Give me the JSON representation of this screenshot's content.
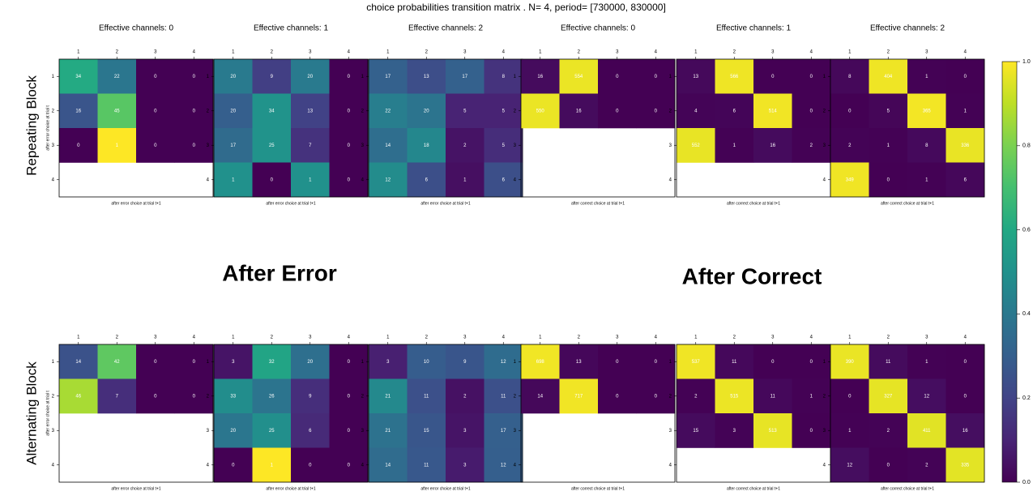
{
  "title": "choice probabilities transition matrix . N= 4, period= [730000, 830000]",
  "row_labels": [
    "Repeating Block",
    "Alternating Block"
  ],
  "group_labels": [
    "After Error",
    "After Correct"
  ],
  "colorbar": {
    "colormap": "viridis",
    "ylim": [
      0,
      1
    ],
    "yticks": [
      {
        "value": 0,
        "label": "0.0"
      },
      {
        "value": 0.2,
        "label": "0.2"
      },
      {
        "value": 0.4,
        "label": "0.4"
      },
      {
        "value": 0.6,
        "label": "0.6"
      },
      {
        "value": 0.8,
        "label": "0.8"
      },
      {
        "value": 1,
        "label": "1.0"
      }
    ]
  },
  "chart_data": [
    {
      "type": "heatmap",
      "title": "Effective channels: 0",
      "x_categories": [
        "1",
        "2",
        "3",
        "4"
      ],
      "y_categories": [
        "1",
        "2",
        "3",
        "4"
      ],
      "xlabel": "after error choice at trial t+1",
      "ylabel": "after error choice at trial t",
      "values": [
        [
          34,
          22,
          0,
          0
        ],
        [
          16,
          45,
          0,
          0
        ],
        [
          0,
          1,
          0,
          0
        ],
        null
      ]
    },
    {
      "type": "heatmap",
      "title": "Effective channels: 1",
      "x_categories": [
        "1",
        "2",
        "3",
        "4"
      ],
      "y_categories": [
        "1",
        "2",
        "3",
        "4"
      ],
      "xlabel": "after error choice at trial t+1",
      "values": [
        [
          20,
          9,
          20,
          0
        ],
        [
          20,
          34,
          13,
          0
        ],
        [
          17,
          25,
          7,
          0
        ],
        [
          1,
          0,
          1,
          0
        ]
      ]
    },
    {
      "type": "heatmap",
      "title": "Effective channels: 2",
      "x_categories": [
        "1",
        "2",
        "3",
        "4"
      ],
      "y_categories": [
        "1",
        "2",
        "3",
        "4"
      ],
      "xlabel": "after error choice at trial t+1",
      "values": [
        [
          17,
          13,
          17,
          8
        ],
        [
          22,
          20,
          5,
          5
        ],
        [
          14,
          18,
          2,
          5
        ],
        [
          12,
          6,
          1,
          6
        ]
      ]
    },
    {
      "type": "heatmap",
      "title": "Effective channels: 0",
      "x_categories": [
        "1",
        "2",
        "3",
        "4"
      ],
      "y_categories": [
        "1",
        "2",
        "3",
        "4"
      ],
      "xlabel": "after correct choice at trial t+1",
      "values": [
        [
          16,
          554,
          0,
          0
        ],
        [
          550,
          16,
          0,
          0
        ],
        null,
        null
      ]
    },
    {
      "type": "heatmap",
      "title": "Effective channels: 1",
      "x_categories": [
        "1",
        "2",
        "3",
        "4"
      ],
      "y_categories": [
        "1",
        "2",
        "3",
        "4"
      ],
      "xlabel": "after correct choice at trial t+1",
      "values": [
        [
          13,
          566,
          0,
          0
        ],
        [
          4,
          6,
          514,
          0
        ],
        [
          552,
          1,
          16,
          2
        ],
        null
      ]
    },
    {
      "type": "heatmap",
      "title": "Effective channels: 2",
      "x_categories": [
        "1",
        "2",
        "3",
        "4"
      ],
      "y_categories": [
        "1",
        "2",
        "3",
        "4"
      ],
      "xlabel": "after correct choice at trial t+1",
      "values": [
        [
          8,
          404,
          1,
          0
        ],
        [
          0,
          5,
          365,
          1
        ],
        [
          2,
          1,
          8,
          336
        ],
        [
          349,
          0,
          1,
          6
        ]
      ]
    },
    {
      "type": "heatmap",
      "x_categories": [
        "1",
        "2",
        "3",
        "4"
      ],
      "y_categories": [
        "1",
        "2",
        "3",
        "4"
      ],
      "xlabel": "after error choice at trial t+1",
      "ylabel": "after error choice at trial t",
      "values": [
        [
          14,
          42,
          0,
          0
        ],
        [
          46,
          7,
          0,
          0
        ],
        null,
        null
      ]
    },
    {
      "type": "heatmap",
      "x_categories": [
        "1",
        "2",
        "3",
        "4"
      ],
      "y_categories": [
        "1",
        "2",
        "3",
        "4"
      ],
      "xlabel": "after error choice at trial t+1",
      "values": [
        [
          3,
          32,
          20,
          0
        ],
        [
          33,
          26,
          9,
          0
        ],
        [
          20,
          25,
          6,
          0
        ],
        [
          0,
          1,
          0,
          0
        ]
      ]
    },
    {
      "type": "heatmap",
      "x_categories": [
        "1",
        "2",
        "3",
        "4"
      ],
      "y_categories": [
        "1",
        "2",
        "3",
        "4"
      ],
      "xlabel": "after error choice at trial t+1",
      "values": [
        [
          3,
          10,
          9,
          12
        ],
        [
          21,
          11,
          2,
          11
        ],
        [
          21,
          15,
          3,
          17
        ],
        [
          14,
          11,
          3,
          12
        ]
      ]
    },
    {
      "type": "heatmap",
      "x_categories": [
        "1",
        "2",
        "3",
        "4"
      ],
      "y_categories": [
        "1",
        "2",
        "3",
        "4"
      ],
      "xlabel": "after correct choice at trial t+1",
      "values": [
        [
          698,
          13,
          0,
          0
        ],
        [
          14,
          717,
          0,
          0
        ],
        null,
        null
      ]
    },
    {
      "type": "heatmap",
      "x_categories": [
        "1",
        "2",
        "3",
        "4"
      ],
      "y_categories": [
        "1",
        "2",
        "3",
        "4"
      ],
      "xlabel": "after correct choice at trial t+1",
      "values": [
        [
          537,
          11,
          0,
          0
        ],
        [
          2,
          515,
          11,
          1
        ],
        [
          15,
          3,
          513,
          0
        ],
        null
      ]
    },
    {
      "type": "heatmap",
      "x_categories": [
        "1",
        "2",
        "3",
        "4"
      ],
      "y_categories": [
        "1",
        "2",
        "3",
        "4"
      ],
      "xlabel": "after correct choice at trial t+1",
      "values": [
        [
          390,
          11,
          1,
          0
        ],
        [
          0,
          327,
          12,
          0
        ],
        [
          1,
          2,
          411,
          16
        ],
        [
          12,
          0,
          2,
          335
        ]
      ]
    }
  ]
}
